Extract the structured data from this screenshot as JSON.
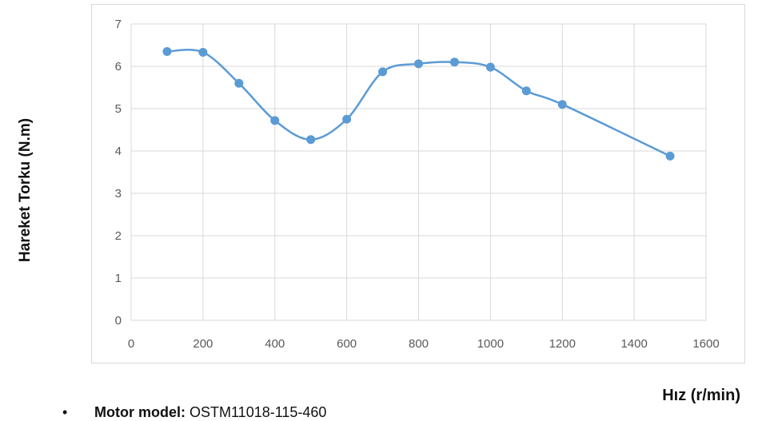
{
  "chart_data": {
    "type": "line",
    "title": "",
    "xlabel": "Hız (r/min)",
    "ylabel": "Hareket Torku (N.m)",
    "xlim": [
      0,
      1600
    ],
    "ylim": [
      0,
      7
    ],
    "x_ticks": [
      "0",
      "200",
      "400",
      "600",
      "800",
      "1000",
      "1200",
      "1400",
      "1600"
    ],
    "y_ticks": [
      "0",
      "1",
      "2",
      "3",
      "4",
      "5",
      "6",
      "7"
    ],
    "grid": true,
    "legend": "none",
    "series": [
      {
        "color": "#5b9bd5",
        "smooth": true,
        "markers": true,
        "x": [
          100,
          200,
          300,
          400,
          500,
          600,
          700,
          800,
          900,
          1000,
          1100,
          1200,
          1500
        ],
        "y": [
          6.35,
          6.33,
          5.6,
          4.72,
          4.27,
          4.75,
          5.87,
          6.06,
          6.1,
          5.98,
          5.42,
          5.1,
          3.88
        ]
      }
    ]
  },
  "footnote": {
    "bullet": "•",
    "label": "Motor model:",
    "value": "OSTM11018-115-460"
  }
}
